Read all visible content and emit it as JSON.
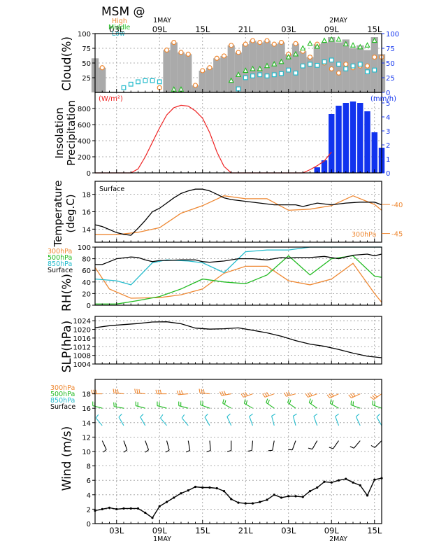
{
  "title": "MSM @",
  "time_axis": {
    "ticks": [
      "03L",
      "09L",
      "15L",
      "21L",
      "03L",
      "09L",
      "15L"
    ],
    "day_labels": [
      "1MAY",
      "2MAY"
    ],
    "hour_start": 0,
    "hour_end": 40
  },
  "legend": {
    "high": "High",
    "middle": "Middle",
    "low": "Low",
    "p300": "300hPa",
    "p500": "500hPa",
    "p850": "850hPa",
    "surface": "Surface"
  },
  "colors": {
    "high": "#ee8833",
    "middle": "#22bb22",
    "low": "#22bbcc",
    "surface": "#000000",
    "insolation": "#ee2222",
    "precip": "#1133ee",
    "bar": "#aaaaaa"
  },
  "chart_data": [
    {
      "type": "bar",
      "id": "cloud",
      "ylabel": "Cloud(%)",
      "ylim": [
        0,
        100
      ],
      "yticks": [
        25,
        50,
        75,
        100
      ],
      "right_yticks": [
        0,
        25,
        50,
        75,
        100
      ],
      "x": [
        0,
        1,
        2,
        3,
        4,
        5,
        6,
        7,
        8,
        9,
        10,
        11,
        12,
        13,
        14,
        15,
        16,
        17,
        18,
        19,
        20,
        21,
        22,
        23,
        24,
        25,
        26,
        27,
        28,
        29,
        30,
        31,
        32,
        33,
        34,
        35,
        36,
        37,
        38,
        39,
        40
      ],
      "series": [
        {
          "name": "Total",
          "values": [
            58,
            42,
            0,
            0,
            0,
            0,
            0,
            0,
            0,
            0,
            72,
            85,
            68,
            65,
            12,
            37,
            42,
            58,
            62,
            80,
            68,
            82,
            88,
            85,
            88,
            82,
            85,
            65,
            83,
            70,
            60,
            82,
            85,
            94,
            85,
            90,
            75,
            80,
            72,
            94,
            65
          ]
        },
        {
          "name": "High",
          "values": [
            null,
            42,
            null,
            null,
            null,
            null,
            null,
            null,
            null,
            8,
            72,
            85,
            68,
            65,
            12,
            37,
            42,
            58,
            62,
            80,
            68,
            82,
            88,
            85,
            88,
            82,
            85,
            65,
            83,
            70,
            60,
            82,
            50,
            40,
            33,
            48,
            42,
            45,
            45,
            60,
            60
          ]
        },
        {
          "name": "Middle",
          "values": [
            null,
            null,
            null,
            null,
            null,
            null,
            null,
            null,
            null,
            null,
            null,
            5,
            5,
            null,
            null,
            null,
            null,
            null,
            null,
            20,
            30,
            37,
            40,
            40,
            45,
            48,
            52,
            60,
            65,
            75,
            83,
            78,
            88,
            90,
            90,
            82,
            80,
            77,
            80,
            88,
            null
          ]
        },
        {
          "name": "Low",
          "values": [
            null,
            null,
            null,
            null,
            8,
            14,
            18,
            20,
            20,
            18,
            null,
            null,
            null,
            null,
            null,
            null,
            null,
            null,
            null,
            null,
            6,
            25,
            28,
            30,
            28,
            30,
            32,
            38,
            33,
            45,
            48,
            46,
            52,
            55,
            48,
            40,
            45,
            48,
            35,
            38,
            null
          ]
        }
      ]
    },
    {
      "type": "line",
      "id": "insolation",
      "ylabel": "Insolation Precipitation",
      "unit_left": "(W/m²)",
      "unit_right": "(mm/h)",
      "ylim": [
        0,
        1000
      ],
      "yticks": [
        0,
        200,
        400,
        600,
        800
      ],
      "right_yticks": [
        0,
        1,
        2,
        3,
        4,
        5
      ],
      "insolation": {
        "x": [
          0,
          3,
          5,
          6,
          7,
          8,
          9,
          10,
          11,
          12,
          13,
          14,
          15,
          16,
          17,
          18,
          19,
          20,
          29,
          30,
          31,
          32,
          33
        ],
        "values": [
          0,
          0,
          0,
          50,
          200,
          380,
          560,
          720,
          810,
          840,
          830,
          770,
          680,
          500,
          260,
          80,
          0,
          0,
          0,
          40,
          90,
          150,
          260
        ]
      },
      "precip": {
        "x": [
          31,
          32,
          33,
          34,
          35,
          36,
          37,
          38,
          39,
          40
        ],
        "values": [
          0.4,
          0.9,
          4.2,
          4.8,
          5.0,
          5.1,
          5.0,
          4.4,
          2.9,
          1.8
        ]
      }
    },
    {
      "type": "line",
      "id": "temperature",
      "ylabel": "Temperature (deg.C)",
      "surface_label": "Surface",
      "ylim": [
        12.5,
        19.5
      ],
      "yticks": [
        14,
        16,
        18
      ],
      "right_ylabel": "300hPa",
      "right_ylim": [
        -46.5,
        -36
      ],
      "right_yticks": [
        -40,
        -45
      ],
      "series": [
        {
          "name": "Surface",
          "x": [
            0,
            1,
            3,
            4,
            5,
            6,
            7,
            8,
            9,
            10,
            11,
            12,
            13,
            14,
            15,
            16,
            17,
            18,
            19,
            21,
            23,
            25,
            27,
            28,
            29,
            31,
            33,
            35,
            37,
            39,
            40
          ],
          "values": [
            14.5,
            14.3,
            13.6,
            13.4,
            13.3,
            14.1,
            15.0,
            16.0,
            16.4,
            17.0,
            17.6,
            18.1,
            18.4,
            18.6,
            18.6,
            18.4,
            18.0,
            17.6,
            17.4,
            17.2,
            17.0,
            16.8,
            16.8,
            16.8,
            16.6,
            17.0,
            16.8,
            17.0,
            17.1,
            17.1,
            16.8
          ]
        },
        {
          "name": "300hPa",
          "x": [
            0,
            3,
            6,
            9,
            12,
            15,
            18,
            21,
            24,
            27,
            30,
            33,
            36,
            39,
            40
          ],
          "values": [
            -45.2,
            -45.2,
            -44.8,
            -44.0,
            -41.5,
            -40.2,
            -38.5,
            -39.0,
            -39.0,
            -41.0,
            -40.8,
            -40.2,
            -38.5,
            -40.0,
            -41.0
          ]
        }
      ]
    },
    {
      "type": "line",
      "id": "rh",
      "ylabel": "RH(%)",
      "ylim": [
        0,
        100
      ],
      "yticks": [
        0,
        20,
        40,
        60,
        80,
        100
      ],
      "series": [
        {
          "name": "Surface",
          "x": [
            0,
            1,
            2,
            3,
            5,
            6,
            7,
            8,
            9,
            10,
            12,
            14,
            15,
            16,
            18,
            20,
            22,
            24,
            26,
            27,
            28,
            30,
            32,
            34,
            36,
            38,
            39,
            40
          ],
          "values": [
            70,
            70,
            75,
            80,
            83,
            82,
            78,
            75,
            77,
            77,
            78,
            78,
            75,
            74,
            76,
            80,
            80,
            78,
            82,
            81,
            82,
            82,
            84,
            80,
            86,
            88,
            85,
            88
          ]
        },
        {
          "name": "850hPa",
          "x": [
            0,
            3,
            5,
            8,
            10,
            13,
            15,
            18,
            21,
            24,
            27,
            30,
            33,
            36,
            40
          ],
          "values": [
            45,
            42,
            35,
            73,
            78,
            76,
            73,
            56,
            92,
            95,
            95,
            100,
            100,
            100,
            100
          ]
        },
        {
          "name": "500hPa",
          "x": [
            0,
            3,
            6,
            9,
            12,
            15,
            18,
            21,
            24,
            27,
            30,
            33,
            36,
            39,
            40
          ],
          "values": [
            2,
            2,
            8,
            15,
            28,
            45,
            40,
            37,
            52,
            85,
            52,
            80,
            85,
            50,
            48
          ]
        },
        {
          "name": "300hPa",
          "x": [
            0,
            2,
            5,
            9,
            12,
            15,
            18,
            21,
            24,
            27,
            30,
            33,
            36,
            39,
            40
          ],
          "values": [
            65,
            28,
            12,
            13,
            18,
            28,
            55,
            67,
            67,
            42,
            35,
            45,
            72,
            20,
            5
          ]
        }
      ]
    },
    {
      "type": "line",
      "id": "slp",
      "ylabel": "SLP(hPa)",
      "ylim": [
        1004,
        1026
      ],
      "yticks": [
        1004,
        1008,
        1012,
        1016,
        1020,
        1024
      ],
      "series": [
        {
          "name": "SLP",
          "x": [
            0,
            2,
            4,
            6,
            8,
            10,
            12,
            14,
            16,
            18,
            20,
            22,
            24,
            26,
            28,
            30,
            32,
            34,
            36,
            38,
            40
          ],
          "values": [
            1020.8,
            1021.7,
            1022.2,
            1022.7,
            1023.4,
            1023.5,
            1022.6,
            1020.6,
            1020.1,
            1020.3,
            1020.7,
            1019.6,
            1018.4,
            1016.8,
            1014.8,
            1013.2,
            1012.2,
            1010.7,
            1009.0,
            1007.6,
            1006.9
          ]
        }
      ]
    },
    {
      "type": "line",
      "id": "wind",
      "ylabel": "Wind (m/s)",
      "ylim": [
        0,
        20
      ],
      "yticks": [
        0,
        2,
        4,
        6,
        8,
        10,
        12,
        14,
        16,
        18
      ],
      "series": [
        {
          "name": "Surface",
          "x": [
            0,
            1,
            2,
            3,
            4,
            5,
            6,
            7,
            8,
            9,
            10,
            11,
            12,
            13,
            14,
            15,
            16,
            17,
            18,
            19,
            20,
            21,
            22,
            23,
            24,
            25,
            26,
            27,
            28,
            29,
            30,
            31,
            32,
            33,
            34,
            35,
            36,
            37,
            38,
            39,
            40
          ],
          "values": [
            1.8,
            2.0,
            2.2,
            2.0,
            2.1,
            2.1,
            2.1,
            1.5,
            0.8,
            2.4,
            3.0,
            3.6,
            4.2,
            4.6,
            5.1,
            5.0,
            5.0,
            4.9,
            4.5,
            3.4,
            2.9,
            2.8,
            2.8,
            3.0,
            3.3,
            4.0,
            3.6,
            3.8,
            3.8,
            3.7,
            4.5,
            5.0,
            5.8,
            5.7,
            6.0,
            6.2,
            5.7,
            5.3,
            3.9,
            6.1,
            6.3
          ]
        }
      ],
      "barbs": {
        "levels": [
          {
            "name": "300hPa",
            "y": 18,
            "dirs": [
              270,
              275,
              275,
              270,
              265,
              275,
              260,
              250,
              250,
              255,
              250,
              245,
              245,
              235
            ]
          },
          {
            "name": "500hPa",
            "y": 16,
            "dirs": [
              285,
              280,
              285,
              285,
              285,
              290,
              300,
              300,
              305,
              305,
              305,
              300,
              290,
              290
            ]
          },
          {
            "name": "850hPa",
            "y": 13.6,
            "dirs": [
              320,
              330,
              330,
              320,
              320,
              330,
              335,
              340,
              345,
              345,
              340,
              340,
              335,
              330
            ]
          },
          {
            "name": "Surface",
            "y": 11.5,
            "dirs": [
              155,
              160,
              160,
              165,
              170,
              175,
              180,
              185,
              190,
              200,
              210,
              215,
              220,
              225
            ]
          }
        ]
      }
    }
  ]
}
